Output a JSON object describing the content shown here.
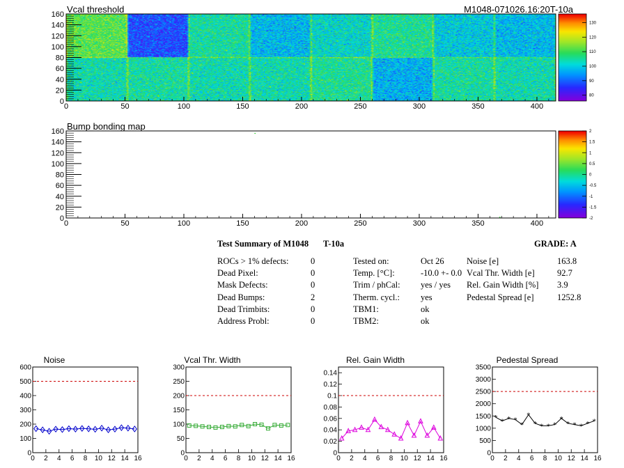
{
  "chart_data": [
    {
      "type": "heatmap",
      "title": "Vcal threshold",
      "module_label": "M1048-071026.16:20T-10a",
      "xlim": [
        0,
        416
      ],
      "ylim": [
        0,
        160
      ],
      "xticks": [
        "0",
        "50",
        "100",
        "150",
        "200",
        "250",
        "300",
        "350",
        "400"
      ],
      "yticks": [
        "0",
        "20",
        "40",
        "60",
        "80",
        "100",
        "120",
        "140",
        "160"
      ],
      "zticks": [
        "80",
        "90",
        "100",
        "110",
        "120",
        "130"
      ],
      "roc_means_top": [
        112,
        88,
        105,
        98,
        102,
        106,
        100,
        98
      ],
      "roc_means_bottom": [
        104,
        105,
        104,
        104,
        106,
        97,
        105,
        104
      ]
    },
    {
      "type": "heatmap",
      "title": "Bump bonding map",
      "xlim": [
        0,
        416
      ],
      "ylim": [
        0,
        160
      ],
      "xticks": [
        "0",
        "50",
        "100",
        "150",
        "200",
        "250",
        "300",
        "350",
        "400"
      ],
      "yticks": [
        "0",
        "20",
        "40",
        "60",
        "80",
        "100",
        "120",
        "140",
        "160"
      ],
      "zticks": [
        "-2",
        "-1.5",
        "-1",
        "-0.5",
        "0",
        "0.5",
        "1",
        "1.5",
        "2"
      ],
      "dead_bumps": [
        [
          160,
          155
        ],
        [
          368,
          1
        ]
      ]
    },
    {
      "type": "line",
      "title": "Noise",
      "x": [
        0,
        1,
        2,
        3,
        4,
        5,
        6,
        7,
        8,
        9,
        10,
        11,
        12,
        13,
        14,
        15
      ],
      "values": [
        168,
        160,
        150,
        165,
        162,
        168,
        165,
        170,
        167,
        164,
        172,
        160,
        165,
        175,
        172,
        166
      ],
      "ylim": [
        0,
        600
      ],
      "xlim": [
        0,
        16
      ],
      "limit": 500,
      "yticks": [
        "0",
        "100",
        "200",
        "300",
        "400",
        "500",
        "600"
      ],
      "xticks": [
        "0",
        "2",
        "4",
        "6",
        "8",
        "10",
        "12",
        "14",
        "16"
      ],
      "color": "#0000cc",
      "marker": "diamond"
    },
    {
      "type": "line",
      "title": "Vcal Thr. Width",
      "x": [
        0,
        1,
        2,
        3,
        4,
        5,
        6,
        7,
        8,
        9,
        10,
        11,
        12,
        13,
        14,
        15
      ],
      "values": [
        95,
        94,
        92,
        90,
        88,
        90,
        93,
        92,
        97,
        93,
        100,
        98,
        85,
        97,
        95,
        97
      ],
      "ylim": [
        0,
        300
      ],
      "xlim": [
        0,
        16
      ],
      "limit": 200,
      "yticks": [
        "0",
        "50",
        "100",
        "150",
        "200",
        "250",
        "300"
      ],
      "xticks": [
        "0",
        "2",
        "4",
        "6",
        "8",
        "10",
        "12",
        "14",
        "16"
      ],
      "color": "#33aa33",
      "marker": "square"
    },
    {
      "type": "line",
      "title": "Rel. Gain Width",
      "x": [
        0,
        1,
        2,
        3,
        4,
        5,
        6,
        7,
        8,
        9,
        10,
        11,
        12,
        13,
        14,
        15
      ],
      "values": [
        0.025,
        0.038,
        0.04,
        0.044,
        0.04,
        0.058,
        0.045,
        0.04,
        0.032,
        0.025,
        0.052,
        0.03,
        0.055,
        0.03,
        0.044,
        0.025
      ],
      "ylim": [
        0,
        0.15
      ],
      "xlim": [
        0,
        16
      ],
      "limit": 0.1,
      "yticks": [
        "0",
        "0.02",
        "0.04",
        "0.06",
        "0.08",
        "0.1",
        "0.12",
        "0.14"
      ],
      "xticks": [
        "0",
        "2",
        "4",
        "6",
        "8",
        "10",
        "12",
        "14",
        "16"
      ],
      "color": "#dd00dd",
      "marker": "triangle"
    },
    {
      "type": "line",
      "title": "Pedestal Spread",
      "x": [
        0,
        1,
        2,
        3,
        4,
        5,
        6,
        7,
        8,
        9,
        10,
        11,
        12,
        13,
        14,
        15
      ],
      "values": [
        1450,
        1300,
        1400,
        1350,
        1150,
        1550,
        1200,
        1100,
        1100,
        1150,
        1400,
        1200,
        1150,
        1100,
        1200,
        1300
      ],
      "ylim": [
        0,
        3500
      ],
      "xlim": [
        0,
        16
      ],
      "limit": 2500,
      "yticks": [
        "0",
        "500",
        "1000",
        "1500",
        "2000",
        "2500",
        "3000",
        "3500"
      ],
      "xticks": [
        "0",
        "2",
        "4",
        "6",
        "8",
        "10",
        "12",
        "14",
        "16"
      ],
      "color": "#000000",
      "marker": "star"
    }
  ],
  "summary": {
    "title": "Test Summary of M1048",
    "temp_label": "T-10a",
    "grade": "GRADE:  A",
    "col1_labels": [
      "ROCs > 1% defects:",
      "Dead Pixel:",
      "Mask Defects:",
      "Dead Bumps:",
      "Dead Trimbits:",
      "Address Probl:"
    ],
    "col1_values": [
      "0",
      "0",
      "0",
      "2",
      "0",
      "0"
    ],
    "col2_labels": [
      "Tested on:",
      "Temp. [°C]:",
      "Trim / phCal:",
      "Therm. cycl.:",
      "TBM1:",
      "TBM2:"
    ],
    "col2_values": [
      "Oct 26",
      "-10.0 +- 0.0",
      "yes / yes",
      "yes",
      "ok",
      "ok"
    ],
    "col3_labels": [
      "Noise [e]",
      "Vcal Thr. Width [e]",
      "Rel. Gain Width [%]",
      "Pedestal Spread [e]"
    ],
    "col3_values": [
      "163.8",
      "92.7",
      "3.9",
      "1252.8"
    ]
  }
}
